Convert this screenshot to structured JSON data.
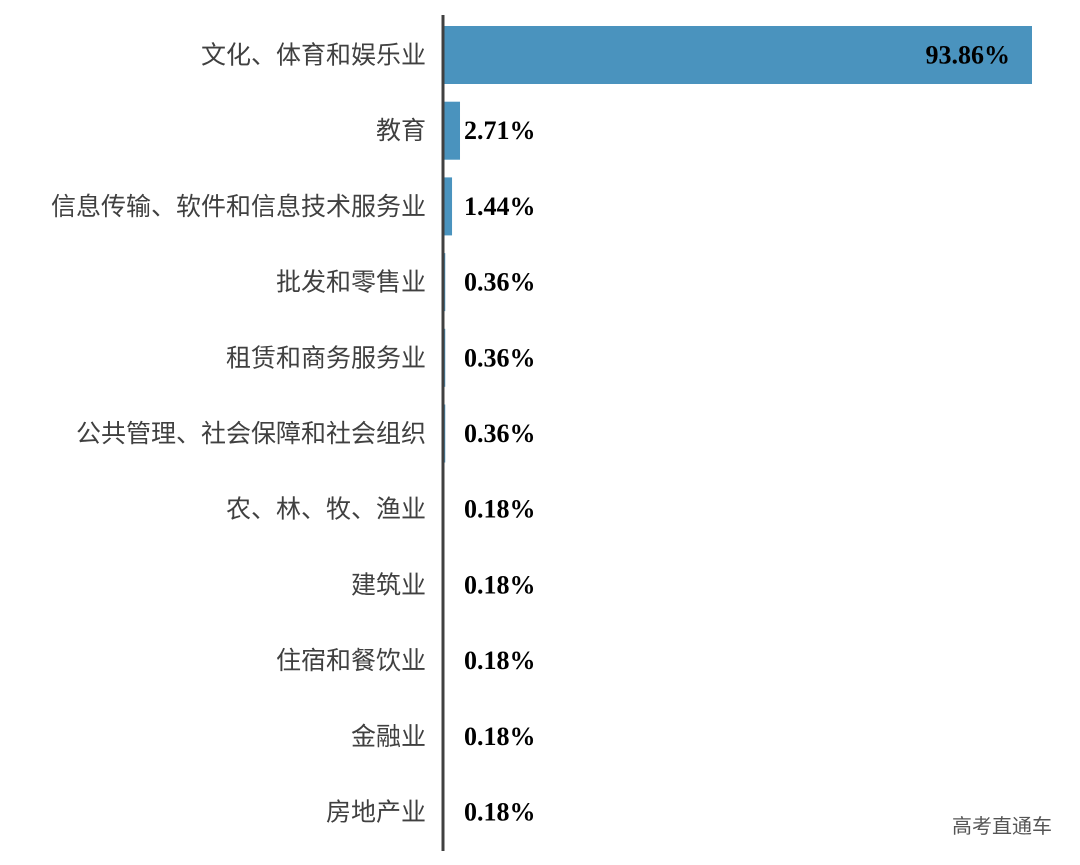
{
  "chart_data": {
    "type": "bar",
    "orientation": "horizontal",
    "categories": [
      "文化、体育和娱乐业",
      "教育",
      "信息传输、软件和信息技术服务业",
      "批发和零售业",
      "租赁和商务服务业",
      "公共管理、社会保障和社会组织",
      "农、林、牧、渔业",
      "建筑业",
      "住宿和餐饮业",
      "金融业",
      "房地产业"
    ],
    "values": [
      93.86,
      2.71,
      1.44,
      0.36,
      0.36,
      0.36,
      0.18,
      0.18,
      0.18,
      0.18,
      0.18
    ],
    "value_labels": [
      "93.86%",
      "2.71%",
      "1.44%",
      "0.36%",
      "0.36%",
      "0.36%",
      "0.18%",
      "0.18%",
      "0.18%",
      "0.18%",
      "0.18%"
    ],
    "title": "",
    "xlabel": "",
    "ylabel": "",
    "xlim": [
      0,
      100
    ],
    "grid": false,
    "legend": "none",
    "bar_color": "#4a93be"
  },
  "watermark": "高考直通车"
}
